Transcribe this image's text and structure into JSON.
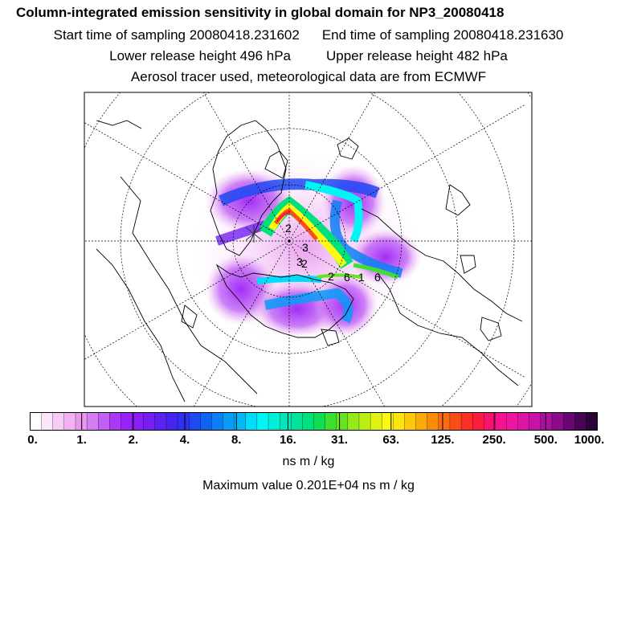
{
  "header": {
    "title": "Column-integrated emission sensitivity in global domain for NP3_20080418",
    "start_time": "Start time of sampling 20080418.231602",
    "end_time": "End time of sampling 20080418.231630",
    "lower_release": "Lower release height  496 hPa",
    "upper_release": "Upper release height  482 hPa",
    "source_note": "Aerosol tracer used, meteorological data are from ECMWF"
  },
  "map": {
    "projection": "north polar stereographic",
    "contour_labels": [
      "2",
      "3",
      "3",
      "2",
      "2",
      "6",
      "1",
      "6"
    ],
    "release_marker": "x"
  },
  "colorbar": {
    "ticks": [
      "0.",
      "1.",
      "2.",
      "4.",
      "8.",
      "16.",
      "31.",
      "63.",
      "125.",
      "250.",
      "500.",
      "1000."
    ],
    "colors": [
      "#ffffff",
      "#fbe6fb",
      "#f6ccf6",
      "#f0b3f0",
      "#e998ee",
      "#d47ef2",
      "#c060f5",
      "#aa38f7",
      "#9b22f7",
      "#8a1ff5",
      "#7420f3",
      "#5c22f1",
      "#4524ef",
      "#2f30f0",
      "#1f49f2",
      "#1064f4",
      "#0a80f6",
      "#089cf7",
      "#06b8f8",
      "#00dcfa",
      "#00f6f4",
      "#00efd8",
      "#00e8ba",
      "#00e39a",
      "#00e07c",
      "#10de52",
      "#3ee030",
      "#66e51e",
      "#94ea18",
      "#bdee14",
      "#e1f212",
      "#fdfa10",
      "#fde40e",
      "#fcc80c",
      "#fca90a",
      "#fb8b0b",
      "#fb6b0f",
      "#fb4d15",
      "#fb2f24",
      "#fb1c40",
      "#fb1270",
      "#f91290",
      "#ef15a0",
      "#dd15a6",
      "#c612a6",
      "#ab0f9b",
      "#8c0b88",
      "#6a0672",
      "#4a0455",
      "#2c0238"
    ]
  },
  "units": "ns m / kg",
  "max_value": "Maximum value  0.201E+04 ns m / kg"
}
